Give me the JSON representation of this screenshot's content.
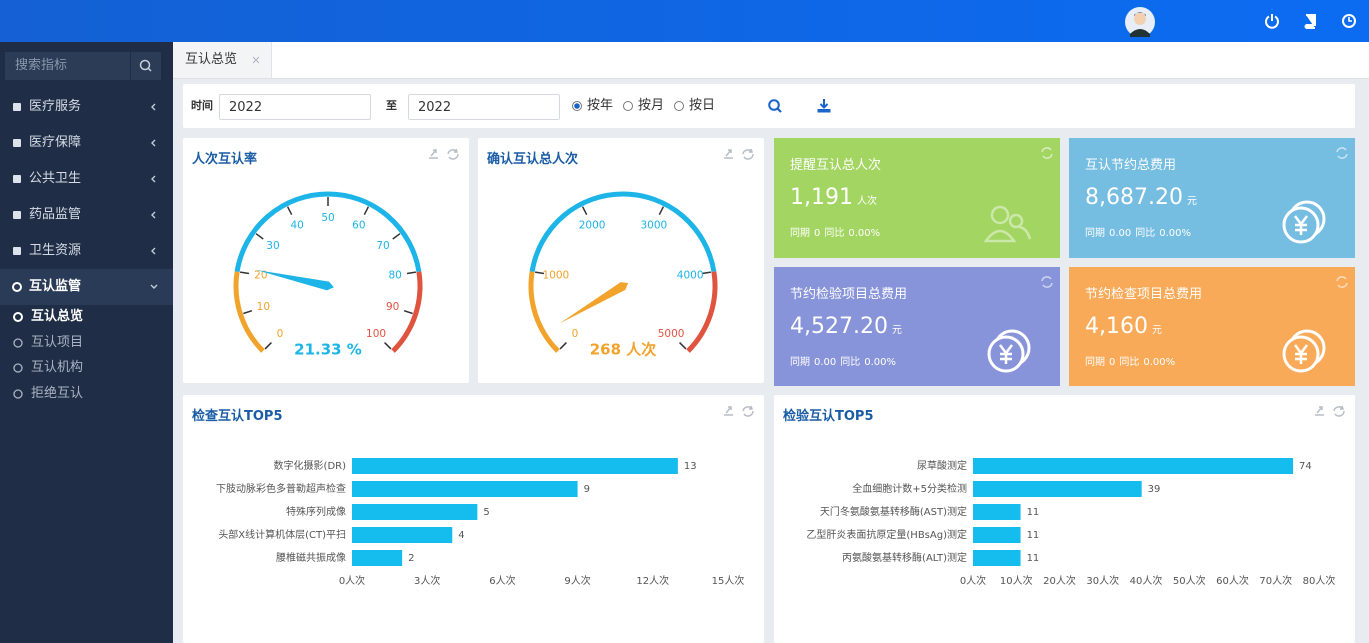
{
  "sidebar": {
    "search_placeholder": "搜索指标",
    "menu": [
      "医疗服务",
      "医疗保障",
      "公共卫生",
      "药品监管",
      "卫生资源",
      "互认监管"
    ],
    "submenu": [
      "互认总览",
      "互认项目",
      "互认机构",
      "拒绝互认"
    ]
  },
  "tabs": [
    "互认总览"
  ],
  "filter": {
    "time_label": "时间",
    "start": "2022",
    "to_label": "至",
    "end": "2022",
    "options": [
      "按年",
      "按月",
      "按日"
    ]
  },
  "chart_data": [
    {
      "type": "gauge",
      "title": "人次互认率",
      "value": 21.33,
      "value_label": "21.33 %",
      "ylim": [
        0,
        100
      ],
      "yticks": [
        0,
        10,
        20,
        30,
        40,
        50,
        60,
        70,
        80,
        90,
        100
      ],
      "colors": [
        "#f1a32c",
        "#1db4e8",
        "#e0533f"
      ]
    },
    {
      "type": "gauge",
      "title": "确认互认总人次",
      "value": 268,
      "value_label": "268 人次",
      "ylim": [
        0,
        5000
      ],
      "yticks": [
        0,
        1000,
        2000,
        3000,
        4000,
        5000
      ],
      "colors": [
        "#f1a32c",
        "#1db4e8",
        "#e0533f"
      ]
    },
    {
      "type": "bar",
      "orientation": "horizontal",
      "title": "检查互认TOP5",
      "categories": [
        "数字化摄影(DR)",
        "下肢动脉彩色多普勒超声检查",
        "特殊序列成像",
        "头部X线计算机体层(CT)平扫",
        "腰椎磁共振成像"
      ],
      "values": [
        13,
        9,
        5,
        4,
        2
      ],
      "color": "#14bdee",
      "xlim": [
        0,
        15
      ],
      "xticks": [
        {
          "value": 0,
          "label": "0人次"
        },
        {
          "value": 3,
          "label": "3人次"
        },
        {
          "value": 6,
          "label": "6人次"
        },
        {
          "value": 9,
          "label": "9人次"
        },
        {
          "value": 12,
          "label": "12人次"
        },
        {
          "value": 15,
          "label": "15人次"
        }
      ]
    },
    {
      "type": "bar",
      "orientation": "horizontal",
      "title": "检验互认TOP5",
      "categories": [
        "尿草酸测定",
        "全血细胞计数+5分类检测",
        "天门冬氨酸氨基转移酶(AST)测定",
        "乙型肝炎表面抗原定量(HBsAg)测定",
        "丙氨酸氨基转移酶(ALT)测定"
      ],
      "values": [
        74,
        39,
        11,
        11,
        11
      ],
      "color": "#14bdee",
      "xlim": [
        0,
        80
      ],
      "xticks": [
        {
          "value": 0,
          "label": "0人次"
        },
        {
          "value": 10,
          "label": "10人次"
        },
        {
          "value": 20,
          "label": "20人次"
        },
        {
          "value": 30,
          "label": "30人次"
        },
        {
          "value": 40,
          "label": "40人次"
        },
        {
          "value": 50,
          "label": "50人次"
        },
        {
          "value": 60,
          "label": "60人次"
        },
        {
          "value": 70,
          "label": "70人次"
        },
        {
          "value": 80,
          "label": "80人次"
        }
      ]
    }
  ],
  "stat_cards": [
    {
      "title": "提醒互认总人次",
      "value": "1,191",
      "unit": "人次",
      "period_label": "同期",
      "period": "0",
      "yoy_label": "同比",
      "yoy": "0.00%",
      "color": "#a3d562"
    },
    {
      "title": "互认节约总费用",
      "value": "8,687.20",
      "unit": "元",
      "period_label": "同期",
      "period": "0.00",
      "yoy_label": "同比",
      "yoy": "0.00%",
      "color": "#76bde2"
    },
    {
      "title": "节约检验项目总费用",
      "value": "4,527.20",
      "unit": "元",
      "period_label": "同期",
      "period": "0.00",
      "yoy_label": "同比",
      "yoy": "0.00%",
      "color": "#8894d9"
    },
    {
      "title": "节约检查项目总费用",
      "value": "4,160",
      "unit": "元",
      "period_label": "同期",
      "period": "0",
      "yoy_label": "同比",
      "yoy": "0.00%",
      "color": "#f8aa58"
    }
  ]
}
